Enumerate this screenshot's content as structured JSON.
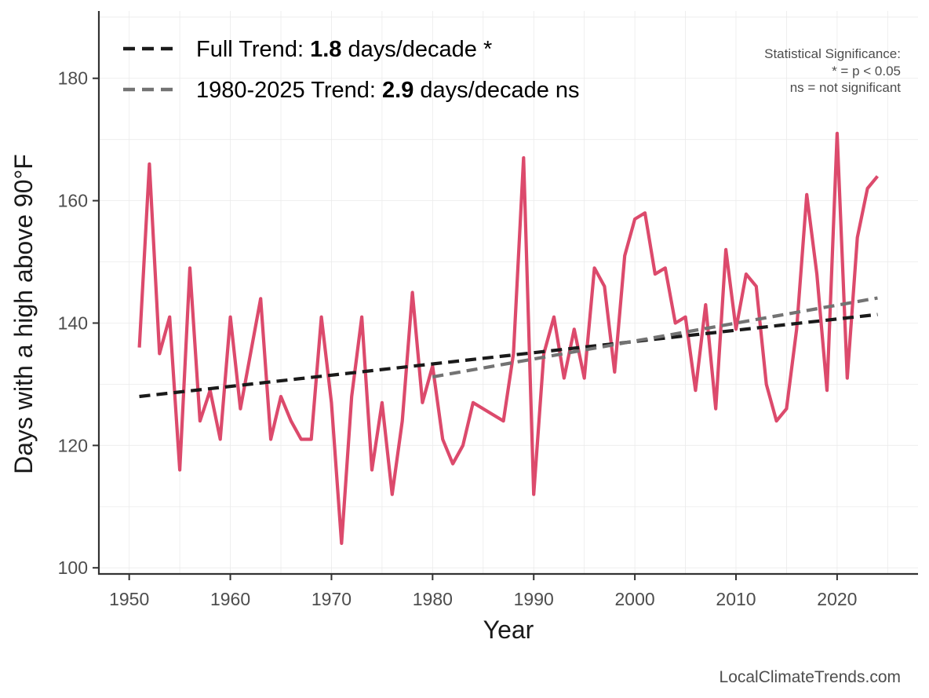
{
  "chart_data": {
    "type": "line",
    "title": "",
    "xlabel": "Year",
    "ylabel": "Days with a high above 90°F",
    "xlim": [
      1947,
      2028
    ],
    "ylim": [
      99,
      191
    ],
    "xticks": [
      1950,
      1960,
      1970,
      1980,
      1990,
      2000,
      2010,
      2020
    ],
    "yticks": [
      100,
      120,
      140,
      160,
      180
    ],
    "grid": true,
    "series": [
      {
        "name": "",
        "color": "#dc4a6c",
        "x": [
          1951,
          1952,
          1953,
          1954,
          1955,
          1956,
          1957,
          1958,
          1959,
          1960,
          1961,
          1962,
          1963,
          1964,
          1965,
          1966,
          1967,
          1968,
          1969,
          1970,
          1971,
          1972,
          1973,
          1974,
          1975,
          1976,
          1977,
          1978,
          1979,
          1980,
          1981,
          1982,
          1983,
          1984,
          1987,
          1988,
          1989,
          1990,
          1991,
          1992,
          1993,
          1994,
          1995,
          1996,
          1997,
          1998,
          1999,
          2000,
          2001,
          2002,
          2003,
          2004,
          2005,
          2006,
          2007,
          2008,
          2009,
          2010,
          2011,
          2012,
          2013,
          2014,
          2015,
          2016,
          2017,
          2018,
          2019,
          2020,
          2021,
          2022,
          2023,
          2024
        ],
        "values": [
          136,
          166,
          135,
          141,
          116,
          149,
          124,
          129,
          121,
          141,
          126,
          135,
          144,
          121,
          128,
          124,
          121,
          121,
          141,
          127,
          104,
          128,
          141,
          116,
          127,
          112,
          124,
          145,
          127,
          133,
          121,
          117,
          120,
          127,
          124,
          135,
          167,
          112,
          135,
          141,
          131,
          139,
          131,
          149,
          146,
          132,
          151,
          157,
          158,
          148,
          149,
          140,
          141,
          129,
          143,
          126,
          152,
          139,
          148,
          146,
          130,
          124,
          126,
          139,
          161,
          148,
          129,
          171,
          131,
          154,
          162,
          164
        ]
      }
    ],
    "trend_lines": [
      {
        "name": "Full Trend",
        "color": "#1a1a1a",
        "x": [
          1951,
          2024
        ],
        "y": [
          128.0,
          141.4
        ]
      },
      {
        "name": "1980-2025 Trend",
        "color": "#737373",
        "x": [
          1980,
          2024
        ],
        "y": [
          131.2,
          144.1
        ]
      }
    ],
    "legend": {
      "position": "top-left",
      "entries": [
        {
          "color": "#1a1a1a",
          "prefix": "Full Trend: ",
          "value": "1.8",
          "suffix": " days/decade *"
        },
        {
          "color": "#737373",
          "prefix": "1980-2025 Trend: ",
          "value": "2.9",
          "suffix": " days/decade ns"
        }
      ]
    },
    "annotations": {
      "significance_title": "Statistical Significance:",
      "significance_line1": "* = p < 0.05",
      "significance_line2": "ns = not significant",
      "credit": "LocalClimateTrends.com"
    }
  }
}
